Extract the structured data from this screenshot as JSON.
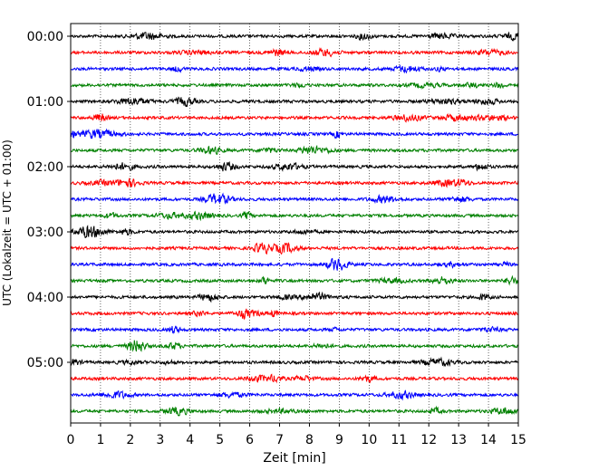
{
  "chart_data": {
    "type": "line",
    "title": "",
    "xlabel": "Zeit  [min]",
    "ylabel": "UTC (Lokalzeit = UTC + 01:00)",
    "xlim": [
      0,
      15
    ],
    "x_ticks": [
      0,
      1,
      2,
      3,
      4,
      5,
      6,
      7,
      8,
      9,
      10,
      11,
      12,
      13,
      14,
      15
    ],
    "y_tick_labels": [
      "00:00",
      "01:00",
      "02:00",
      "03:00",
      "04:00",
      "05:00"
    ],
    "trace_interval_minutes": 15,
    "trace_count": 24,
    "trace_colors": [
      "#000000",
      "#ff0000",
      "#0000ff",
      "#008000"
    ],
    "grid": "vertical-dotted",
    "legend": "none"
  }
}
